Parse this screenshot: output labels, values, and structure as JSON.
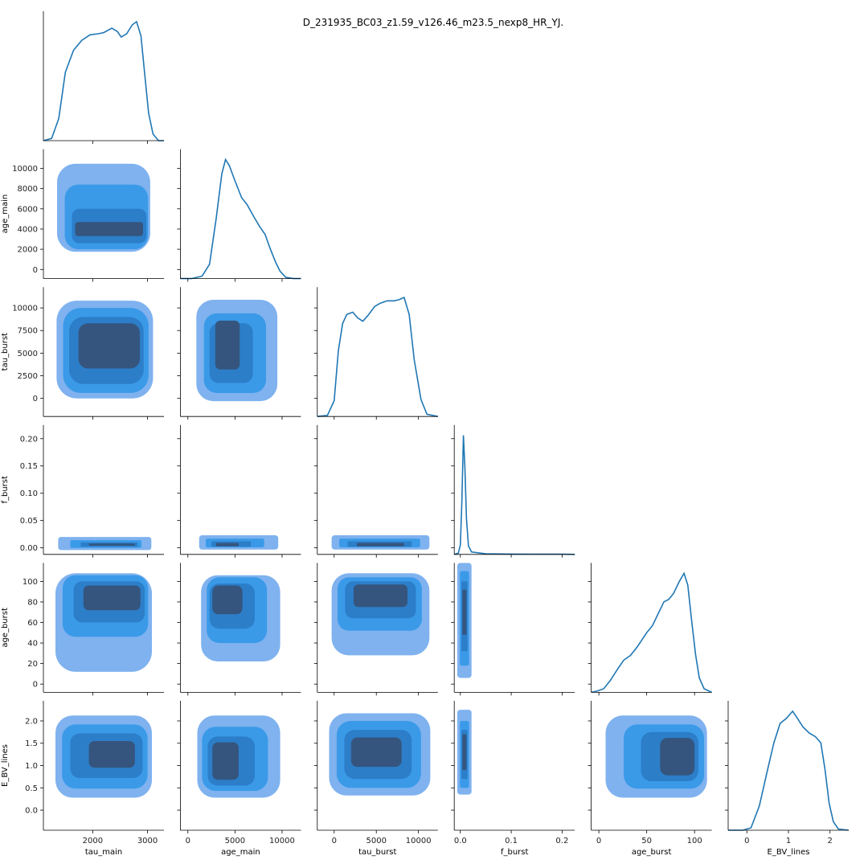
{
  "title": "D_231935_BC03_z1.59_v126.46_m23.5_nexp8_HR_YJ.",
  "colors": {
    "line": "#1f77b4",
    "fill_levels": [
      "#7fb2ef",
      "#3a9ae8",
      "#2c7ec9",
      "#35557e"
    ],
    "axis": "#000000"
  },
  "chart_data": {
    "type": "corner",
    "variables": [
      {
        "name": "tau_main",
        "xlim": [
          1100,
          3300
        ],
        "ylim": null,
        "xticks": [
          2000,
          3000
        ],
        "xtick_labels": [
          "2000",
          "3000"
        ]
      },
      {
        "name": "age_main",
        "xlim": [
          -800,
          12000
        ],
        "ylim": [
          -900,
          11900
        ],
        "xticks": [
          0,
          5000,
          10000
        ],
        "xtick_labels": [
          "0",
          "5000",
          "10000"
        ],
        "yticks": [
          0,
          2000,
          4000,
          6000,
          8000,
          10000
        ],
        "ytick_labels": [
          "0",
          "2000",
          "4000",
          "6000",
          "8000",
          "10000"
        ]
      },
      {
        "name": "tau_burst",
        "xlim": [
          -2000,
          12300
        ],
        "ylim": [
          -2000,
          12300
        ],
        "xticks": [
          0,
          5000,
          10000
        ],
        "xtick_labels": [
          "0",
          "5000",
          "10000"
        ],
        "yticks": [
          0,
          2500,
          5000,
          7500,
          10000
        ],
        "ytick_labels": [
          "0",
          "2500",
          "5000",
          "7500",
          "10000"
        ]
      },
      {
        "name": "f_burst",
        "xlim": [
          -0.012,
          0.225
        ],
        "ylim": [
          -0.012,
          0.225
        ],
        "xticks": [
          0.0,
          0.1,
          0.2
        ],
        "xtick_labels": [
          "0.0",
          "0.1",
          "0.2"
        ],
        "yticks": [
          0.0,
          0.05,
          0.1,
          0.15,
          0.2
        ],
        "ytick_labels": [
          "0.00",
          "0.05",
          "0.10",
          "0.15",
          "0.20"
        ]
      },
      {
        "name": "age_burst",
        "xlim": [
          -8,
          118
        ],
        "ylim": [
          -8,
          118
        ],
        "xticks": [
          0,
          50,
          100
        ],
        "xtick_labels": [
          "0",
          "50",
          "100"
        ],
        "yticks": [
          0,
          20,
          40,
          60,
          80,
          100
        ],
        "ytick_labels": [
          "0",
          "20",
          "40",
          "60",
          "80",
          "100"
        ]
      },
      {
        "name": "E_BV_lines",
        "xlim": [
          -0.45,
          2.45
        ],
        "ylim": [
          -0.45,
          2.45
        ],
        "xticks": [
          0,
          1,
          2
        ],
        "xtick_labels": [
          "0",
          "1",
          "2"
        ],
        "yticks": [
          0.0,
          0.5,
          1.0,
          1.5,
          2.0
        ],
        "ytick_labels": [
          "0.0",
          "0.5",
          "1.0",
          "1.5",
          "2.0"
        ]
      }
    ],
    "diagonal_kde": [
      {
        "variable": "tau_main",
        "points": [
          [
            1100,
            0
          ],
          [
            1250,
            0.02
          ],
          [
            1380,
            0.2
          ],
          [
            1500,
            0.62
          ],
          [
            1650,
            0.82
          ],
          [
            1800,
            0.91
          ],
          [
            1950,
            0.96
          ],
          [
            2100,
            0.97
          ],
          [
            2200,
            0.98
          ],
          [
            2350,
            1.02
          ],
          [
            2450,
            0.99
          ],
          [
            2520,
            0.94
          ],
          [
            2620,
            0.97
          ],
          [
            2720,
            1.05
          ],
          [
            2800,
            1.08
          ],
          [
            2880,
            0.95
          ],
          [
            2950,
            0.6
          ],
          [
            3020,
            0.25
          ],
          [
            3100,
            0.06
          ],
          [
            3200,
            0.0
          ],
          [
            3300,
            0
          ]
        ]
      },
      {
        "variable": "age_main",
        "points": [
          [
            -800,
            0
          ],
          [
            400,
            0
          ],
          [
            1500,
            0.02
          ],
          [
            2300,
            0.12
          ],
          [
            3000,
            0.5
          ],
          [
            3600,
            0.88
          ],
          [
            4000,
            1.0
          ],
          [
            4400,
            0.95
          ],
          [
            5000,
            0.82
          ],
          [
            5700,
            0.68
          ],
          [
            6300,
            0.62
          ],
          [
            7000,
            0.52
          ],
          [
            7600,
            0.44
          ],
          [
            8200,
            0.37
          ],
          [
            8700,
            0.26
          ],
          [
            9300,
            0.14
          ],
          [
            9800,
            0.06
          ],
          [
            10400,
            0.01
          ],
          [
            11200,
            0
          ],
          [
            12000,
            0
          ]
        ]
      },
      {
        "variable": "tau_burst",
        "points": [
          [
            -2000,
            0
          ],
          [
            -800,
            0.01
          ],
          [
            0,
            0.14
          ],
          [
            500,
            0.58
          ],
          [
            1000,
            0.82
          ],
          [
            1500,
            0.9
          ],
          [
            2200,
            0.92
          ],
          [
            2800,
            0.87
          ],
          [
            3400,
            0.84
          ],
          [
            4000,
            0.89
          ],
          [
            4800,
            0.97
          ],
          [
            5500,
            1.0
          ],
          [
            6300,
            1.02
          ],
          [
            7100,
            1.02
          ],
          [
            7700,
            1.03
          ],
          [
            8300,
            1.05
          ],
          [
            8900,
            0.9
          ],
          [
            9500,
            0.5
          ],
          [
            10300,
            0.15
          ],
          [
            11000,
            0.02
          ],
          [
            12300,
            0
          ]
        ]
      },
      {
        "variable": "f_burst",
        "points": [
          [
            -0.012,
            0
          ],
          [
            -0.004,
            0.01
          ],
          [
            0.0,
            0.08
          ],
          [
            0.003,
            0.45
          ],
          [
            0.006,
            1.0
          ],
          [
            0.009,
            0.72
          ],
          [
            0.012,
            0.3
          ],
          [
            0.016,
            0.07
          ],
          [
            0.022,
            0.02
          ],
          [
            0.05,
            0.005
          ],
          [
            0.1,
            0.003
          ],
          [
            0.15,
            0.002
          ],
          [
            0.2,
            0.002
          ],
          [
            0.225,
            0
          ]
        ]
      },
      {
        "variable": "age_burst",
        "points": [
          [
            -8,
            0
          ],
          [
            -2,
            0.01
          ],
          [
            5,
            0.03
          ],
          [
            12,
            0.1
          ],
          [
            20,
            0.2
          ],
          [
            26,
            0.27
          ],
          [
            33,
            0.31
          ],
          [
            40,
            0.38
          ],
          [
            45,
            0.44
          ],
          [
            50,
            0.5
          ],
          [
            56,
            0.56
          ],
          [
            62,
            0.66
          ],
          [
            68,
            0.76
          ],
          [
            73,
            0.78
          ],
          [
            78,
            0.83
          ],
          [
            84,
            0.93
          ],
          [
            89,
            1.0
          ],
          [
            93,
            0.9
          ],
          [
            97,
            0.6
          ],
          [
            101,
            0.32
          ],
          [
            105,
            0.12
          ],
          [
            110,
            0.03
          ],
          [
            118,
            0
          ]
        ]
      },
      {
        "variable": "E_BV_lines",
        "points": [
          [
            -0.45,
            0
          ],
          [
            -0.1,
            0
          ],
          [
            0.1,
            0.02
          ],
          [
            0.3,
            0.2
          ],
          [
            0.5,
            0.5
          ],
          [
            0.65,
            0.72
          ],
          [
            0.8,
            0.88
          ],
          [
            0.95,
            0.92
          ],
          [
            1.1,
            0.98
          ],
          [
            1.2,
            0.93
          ],
          [
            1.35,
            0.85
          ],
          [
            1.5,
            0.8
          ],
          [
            1.65,
            0.77
          ],
          [
            1.78,
            0.72
          ],
          [
            1.88,
            0.5
          ],
          [
            1.98,
            0.22
          ],
          [
            2.08,
            0.07
          ],
          [
            2.2,
            0.01
          ],
          [
            2.45,
            0
          ]
        ]
      }
    ],
    "contour_panels": [
      {
        "x": "tau_main",
        "y": "age_main",
        "levels": [
          {
            "cx": 2200,
            "cy": 6100,
            "rx": 850,
            "ry": 4350
          },
          {
            "cx": 2250,
            "cy": 5200,
            "rx": 760,
            "ry": 3200
          },
          {
            "cx": 2300,
            "cy": 4300,
            "rx": 680,
            "ry": 1700
          },
          {
            "cx": 2300,
            "cy": 4000,
            "rx": 620,
            "ry": 700
          }
        ]
      },
      {
        "x": "tau_main",
        "y": "tau_burst",
        "levels": [
          {
            "cx": 2220,
            "cy": 5400,
            "rx": 880,
            "ry": 5400
          },
          {
            "cx": 2240,
            "cy": 5300,
            "rx": 780,
            "ry": 4700
          },
          {
            "cx": 2250,
            "cy": 5300,
            "rx": 680,
            "ry": 3700
          },
          {
            "cx": 2300,
            "cy": 5800,
            "rx": 560,
            "ry": 2500
          }
        ]
      },
      {
        "x": "tau_main",
        "y": "f_burst",
        "levels": [
          {
            "cx": 2220,
            "cy": 0.008,
            "rx": 850,
            "ry": 0.012
          },
          {
            "cx": 2240,
            "cy": 0.007,
            "rx": 650,
            "ry": 0.007
          },
          {
            "cx": 2300,
            "cy": 0.006,
            "rx": 520,
            "ry": 0.004
          },
          {
            "cx": 2350,
            "cy": 0.006,
            "rx": 420,
            "ry": 0.002
          }
        ]
      },
      {
        "x": "tau_main",
        "y": "age_burst",
        "levels": [
          {
            "cx": 2200,
            "cy": 60,
            "rx": 880,
            "ry": 48
          },
          {
            "cx": 2230,
            "cy": 76,
            "rx": 780,
            "ry": 30
          },
          {
            "cx": 2300,
            "cy": 80,
            "rx": 650,
            "ry": 20
          },
          {
            "cx": 2350,
            "cy": 84,
            "rx": 520,
            "ry": 12
          }
        ]
      },
      {
        "x": "tau_main",
        "y": "E_BV_lines",
        "levels": [
          {
            "cx": 2200,
            "cy": 1.2,
            "rx": 880,
            "ry": 0.92
          },
          {
            "cx": 2220,
            "cy": 1.2,
            "rx": 780,
            "ry": 0.72
          },
          {
            "cx": 2250,
            "cy": 1.22,
            "rx": 660,
            "ry": 0.5
          },
          {
            "cx": 2350,
            "cy": 1.25,
            "rx": 420,
            "ry": 0.3
          }
        ]
      },
      {
        "x": "age_main",
        "y": "tau_burst",
        "levels": [
          {
            "cx": 5200,
            "cy": 5300,
            "rx": 4300,
            "ry": 5600
          },
          {
            "cx": 5000,
            "cy": 5000,
            "rx": 3300,
            "ry": 4400
          },
          {
            "cx": 4600,
            "cy": 5000,
            "rx": 2300,
            "ry": 3300
          },
          {
            "cx": 4200,
            "cy": 5900,
            "rx": 1300,
            "ry": 2700
          }
        ]
      },
      {
        "x": "age_main",
        "y": "f_burst",
        "levels": [
          {
            "cx": 5400,
            "cy": 0.01,
            "rx": 4200,
            "ry": 0.013
          },
          {
            "cx": 5000,
            "cy": 0.009,
            "rx": 3100,
            "ry": 0.008
          },
          {
            "cx": 4600,
            "cy": 0.007,
            "rx": 2100,
            "ry": 0.005
          },
          {
            "cx": 4200,
            "cy": 0.006,
            "rx": 1200,
            "ry": 0.003
          }
        ]
      },
      {
        "x": "age_main",
        "y": "age_burst",
        "levels": [
          {
            "cx": 5600,
            "cy": 64,
            "rx": 4200,
            "ry": 42
          },
          {
            "cx": 5200,
            "cy": 72,
            "rx": 3200,
            "ry": 32
          },
          {
            "cx": 4700,
            "cy": 76,
            "rx": 2400,
            "ry": 22
          },
          {
            "cx": 4200,
            "cy": 82,
            "rx": 1600,
            "ry": 14
          }
        ]
      },
      {
        "x": "age_main",
        "y": "E_BV_lines",
        "levels": [
          {
            "cx": 5400,
            "cy": 1.2,
            "rx": 4400,
            "ry": 0.92
          },
          {
            "cx": 5000,
            "cy": 1.15,
            "rx": 3500,
            "ry": 0.72
          },
          {
            "cx": 4600,
            "cy": 1.1,
            "rx": 2500,
            "ry": 0.55
          },
          {
            "cx": 4000,
            "cy": 1.1,
            "rx": 1400,
            "ry": 0.42
          }
        ]
      },
      {
        "x": "tau_burst",
        "y": "f_burst",
        "levels": [
          {
            "cx": 5500,
            "cy": 0.01,
            "rx": 5800,
            "ry": 0.013
          },
          {
            "cx": 5400,
            "cy": 0.009,
            "rx": 4800,
            "ry": 0.008
          },
          {
            "cx": 5400,
            "cy": 0.007,
            "rx": 3800,
            "ry": 0.005
          },
          {
            "cx": 5500,
            "cy": 0.006,
            "rx": 2800,
            "ry": 0.003
          }
        ]
      },
      {
        "x": "tau_burst",
        "y": "age_burst",
        "levels": [
          {
            "cx": 5500,
            "cy": 68,
            "rx": 5800,
            "ry": 40
          },
          {
            "cx": 5400,
            "cy": 78,
            "rx": 5000,
            "ry": 26
          },
          {
            "cx": 5500,
            "cy": 82,
            "rx": 4200,
            "ry": 18
          },
          {
            "cx": 5500,
            "cy": 86,
            "rx": 3200,
            "ry": 11
          }
        ]
      },
      {
        "x": "tau_burst",
        "y": "E_BV_lines",
        "levels": [
          {
            "cx": 5400,
            "cy": 1.25,
            "rx": 6000,
            "ry": 0.92
          },
          {
            "cx": 5300,
            "cy": 1.25,
            "rx": 5000,
            "ry": 0.75
          },
          {
            "cx": 5200,
            "cy": 1.25,
            "rx": 4000,
            "ry": 0.55
          },
          {
            "cx": 5000,
            "cy": 1.3,
            "rx": 3000,
            "ry": 0.33
          }
        ]
      },
      {
        "x": "f_burst",
        "y": "age_burst",
        "levels": [
          {
            "cx": 0.008,
            "cy": 62,
            "rx": 0.014,
            "ry": 56
          },
          {
            "cx": 0.008,
            "cy": 64,
            "rx": 0.009,
            "ry": 46
          },
          {
            "cx": 0.008,
            "cy": 66,
            "rx": 0.006,
            "ry": 34
          },
          {
            "cx": 0.008,
            "cy": 70,
            "rx": 0.004,
            "ry": 22
          }
        ]
      },
      {
        "x": "f_burst",
        "y": "E_BV_lines",
        "levels": [
          {
            "cx": 0.008,
            "cy": 1.3,
            "rx": 0.014,
            "ry": 0.95
          },
          {
            "cx": 0.008,
            "cy": 1.25,
            "rx": 0.009,
            "ry": 0.75
          },
          {
            "cx": 0.008,
            "cy": 1.25,
            "rx": 0.006,
            "ry": 0.55
          },
          {
            "cx": 0.008,
            "cy": 1.3,
            "rx": 0.004,
            "ry": 0.4
          }
        ]
      },
      {
        "x": "age_burst",
        "y": "E_BV_lines",
        "levels": [
          {
            "cx": 60,
            "cy": 1.2,
            "rx": 53,
            "ry": 0.92
          },
          {
            "cx": 68,
            "cy": 1.2,
            "rx": 42,
            "ry": 0.72
          },
          {
            "cx": 74,
            "cy": 1.2,
            "rx": 30,
            "ry": 0.55
          },
          {
            "cx": 82,
            "cy": 1.2,
            "rx": 18,
            "ry": 0.42
          }
        ]
      }
    ]
  }
}
